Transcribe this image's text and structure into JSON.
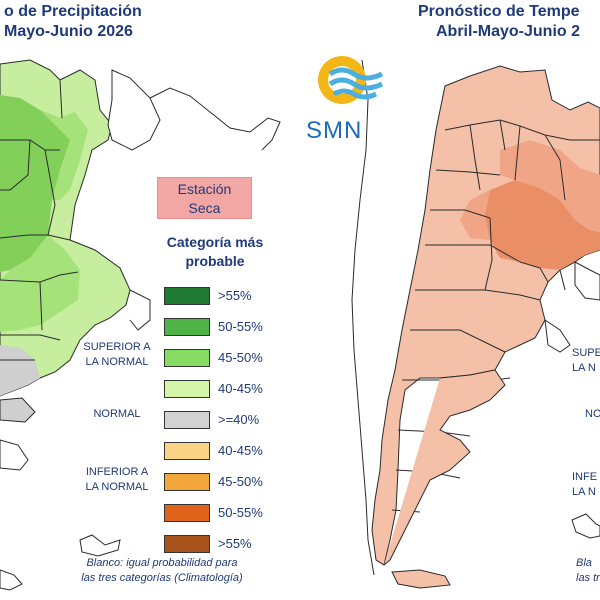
{
  "left_panel": {
    "title_line1": "o de Precipitación",
    "title_line2": "Mayo-Junio 2026",
    "dry_station_line1": "Estación",
    "dry_station_line2": "Seca",
    "legend": {
      "title_line1": "Categoría más",
      "title_line2": "probable",
      "items": [
        {
          "label": ">55%",
          "color": "#1e7a32"
        },
        {
          "label": "50-55%",
          "color": "#4fb348"
        },
        {
          "label": "45-50%",
          "color": "#86dc62"
        },
        {
          "label": "40-45%",
          "color": "#d4f6a8"
        },
        {
          "label": ">=40%",
          "color": "#d2d2d2"
        },
        {
          "label": "40-45%",
          "color": "#fbd486"
        },
        {
          "label": "45-50%",
          "color": "#f2a53a"
        },
        {
          "label": "50-55%",
          "color": "#e0631c"
        },
        {
          "label": ">55%",
          "color": "#a8521c"
        }
      ],
      "group_superior_line1": "SUPERIOR A",
      "group_superior_line2": "LA NORMAL",
      "group_normal": "NORMAL",
      "group_inferior_line1": "INFERIOR A",
      "group_inferior_line2": "LA NORMAL"
    },
    "note_line1": "Blanco: igual probabilidad para",
    "note_line2": "las tres categorías (Climatología)"
  },
  "logo": {
    "text": "SMN",
    "sun_color": "#f3b616",
    "wave_color": "#4aaee0",
    "text_color": "#1e6bb8"
  },
  "right_panel": {
    "title_line1": "Pronóstico de Tempe",
    "title_line2": "Abril-Mayo-Junio 2",
    "partial_superior_line1": "SUPER",
    "partial_superior_line2": "LA N",
    "partial_normal": "NO",
    "partial_inferior_line1": "INFE",
    "partial_inferior_line2": "LA N",
    "partial_note_line1": "Bla",
    "partial_note_line2": "las tr"
  },
  "map_colors": {
    "precip_light": "#c7ee9e",
    "precip_mid": "#a5e27a",
    "precip_dark": "#82d05a",
    "precip_gray": "#cfcfcf",
    "temp_base": "#f4c0a8",
    "temp_mid": "#f0a686",
    "temp_dark": "#ea8e66",
    "border": "#2a2a2a"
  }
}
